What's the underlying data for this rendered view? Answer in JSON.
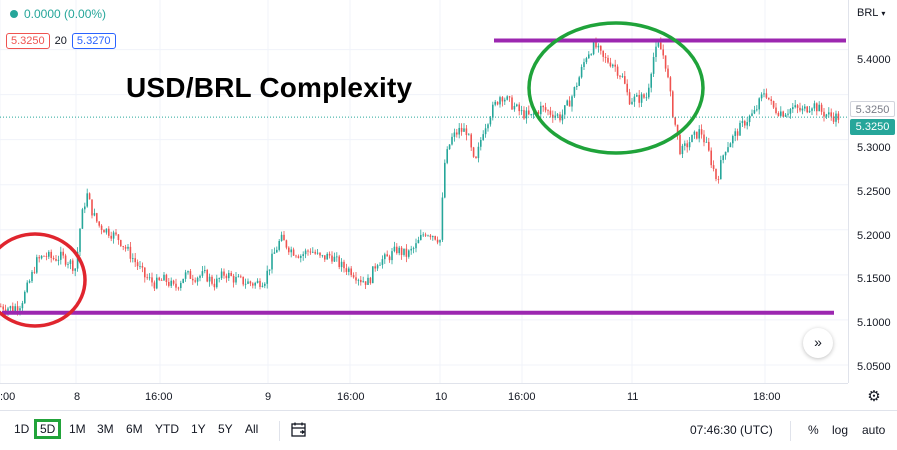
{
  "legend": {
    "change": "0.0000 (0.00%)",
    "bid": "5.3250",
    "spread": "20",
    "ask": "5.3270"
  },
  "title": "USD/BRL Complexity",
  "price_axis": {
    "currency": "BRL",
    "labels": [
      "5.4000",
      "5.3500",
      "5.3000",
      "5.2500",
      "5.2000",
      "5.1500",
      "5.1000",
      "5.0500"
    ],
    "last_price": "5.3250",
    "high_price": "5.3250"
  },
  "time_axis": {
    "labels": [
      ":00",
      "8",
      "16:00",
      "9",
      "16:00",
      "10",
      "16:00",
      "11",
      "18:00"
    ]
  },
  "toolbar": {
    "timeframes": [
      "1D",
      "5D",
      "1M",
      "3M",
      "6M",
      "YTD",
      "1Y",
      "5Y",
      "All"
    ],
    "active": "5D",
    "time": "07:46:30 (UTC)",
    "percent": "%",
    "log": "log",
    "auto": "auto"
  },
  "icons": {
    "gear": "gear-icon",
    "compare": "calendar-range-icon",
    "scroll": "double-chevron-right-icon",
    "menu": "chevron-down-icon"
  },
  "colors": {
    "up": "#26a69a",
    "down": "#ef5350",
    "level": "#9c27b0",
    "green_circle": "#1fa33a",
    "red_circle": "#e0252e"
  },
  "chart_data": {
    "type": "candlestick",
    "symbol": "USD/BRL",
    "interval_label": "5D",
    "ylim": [
      5.03,
      5.455
    ],
    "yticks": [
      5.05,
      5.1,
      5.15,
      5.2,
      5.25,
      5.3,
      5.35,
      5.4
    ],
    "resistance": 5.41,
    "support": 5.108,
    "last": 5.325,
    "path": [
      [
        0,
        5.115
      ],
      [
        12,
        5.113
      ],
      [
        20,
        5.118
      ],
      [
        28,
        5.14
      ],
      [
        36,
        5.165
      ],
      [
        44,
        5.172
      ],
      [
        52,
        5.168
      ],
      [
        60,
        5.17
      ],
      [
        68,
        5.165
      ],
      [
        75,
        5.157
      ],
      [
        80,
        5.21
      ],
      [
        86,
        5.24
      ],
      [
        92,
        5.218
      ],
      [
        98,
        5.205
      ],
      [
        108,
        5.198
      ],
      [
        118,
        5.19
      ],
      [
        128,
        5.175
      ],
      [
        136,
        5.162
      ],
      [
        144,
        5.148
      ],
      [
        154,
        5.14
      ],
      [
        164,
        5.145
      ],
      [
        174,
        5.135
      ],
      [
        184,
        5.15
      ],
      [
        194,
        5.148
      ],
      [
        204,
        5.15
      ],
      [
        214,
        5.14
      ],
      [
        224,
        5.152
      ],
      [
        234,
        5.145
      ],
      [
        244,
        5.142
      ],
      [
        254,
        5.14
      ],
      [
        264,
        5.145
      ],
      [
        272,
        5.17
      ],
      [
        280,
        5.19
      ],
      [
        290,
        5.178
      ],
      [
        300,
        5.172
      ],
      [
        310,
        5.178
      ],
      [
        320,
        5.168
      ],
      [
        330,
        5.172
      ],
      [
        340,
        5.16
      ],
      [
        350,
        5.155
      ],
      [
        360,
        5.145
      ],
      [
        368,
        5.142
      ],
      [
        376,
        5.165
      ],
      [
        386,
        5.168
      ],
      [
        396,
        5.178
      ],
      [
        406,
        5.172
      ],
      [
        414,
        5.18
      ],
      [
        424,
        5.198
      ],
      [
        432,
        5.195
      ],
      [
        440,
        5.188
      ],
      [
        443,
        5.27
      ],
      [
        450,
        5.3
      ],
      [
        458,
        5.31
      ],
      [
        466,
        5.31
      ],
      [
        474,
        5.27
      ],
      [
        482,
        5.31
      ],
      [
        490,
        5.33
      ],
      [
        500,
        5.35
      ],
      [
        510,
        5.34
      ],
      [
        520,
        5.33
      ],
      [
        530,
        5.325
      ],
      [
        540,
        5.335
      ],
      [
        550,
        5.33
      ],
      [
        560,
        5.325
      ],
      [
        570,
        5.345
      ],
      [
        578,
        5.368
      ],
      [
        586,
        5.395
      ],
      [
        594,
        5.405
      ],
      [
        602,
        5.39
      ],
      [
        612,
        5.385
      ],
      [
        622,
        5.368
      ],
      [
        628,
        5.345
      ],
      [
        636,
        5.345
      ],
      [
        646,
        5.348
      ],
      [
        652,
        5.39
      ],
      [
        658,
        5.405
      ],
      [
        664,
        5.39
      ],
      [
        672,
        5.33
      ],
      [
        680,
        5.285
      ],
      [
        690,
        5.3
      ],
      [
        700,
        5.31
      ],
      [
        708,
        5.285
      ],
      [
        716,
        5.255
      ],
      [
        724,
        5.29
      ],
      [
        734,
        5.305
      ],
      [
        744,
        5.32
      ],
      [
        754,
        5.33
      ],
      [
        764,
        5.355
      ],
      [
        772,
        5.335
      ],
      [
        782,
        5.33
      ],
      [
        792,
        5.335
      ],
      [
        802,
        5.332
      ],
      [
        812,
        5.34
      ],
      [
        822,
        5.33
      ],
      [
        830,
        5.326
      ],
      [
        838,
        5.325
      ]
    ]
  }
}
